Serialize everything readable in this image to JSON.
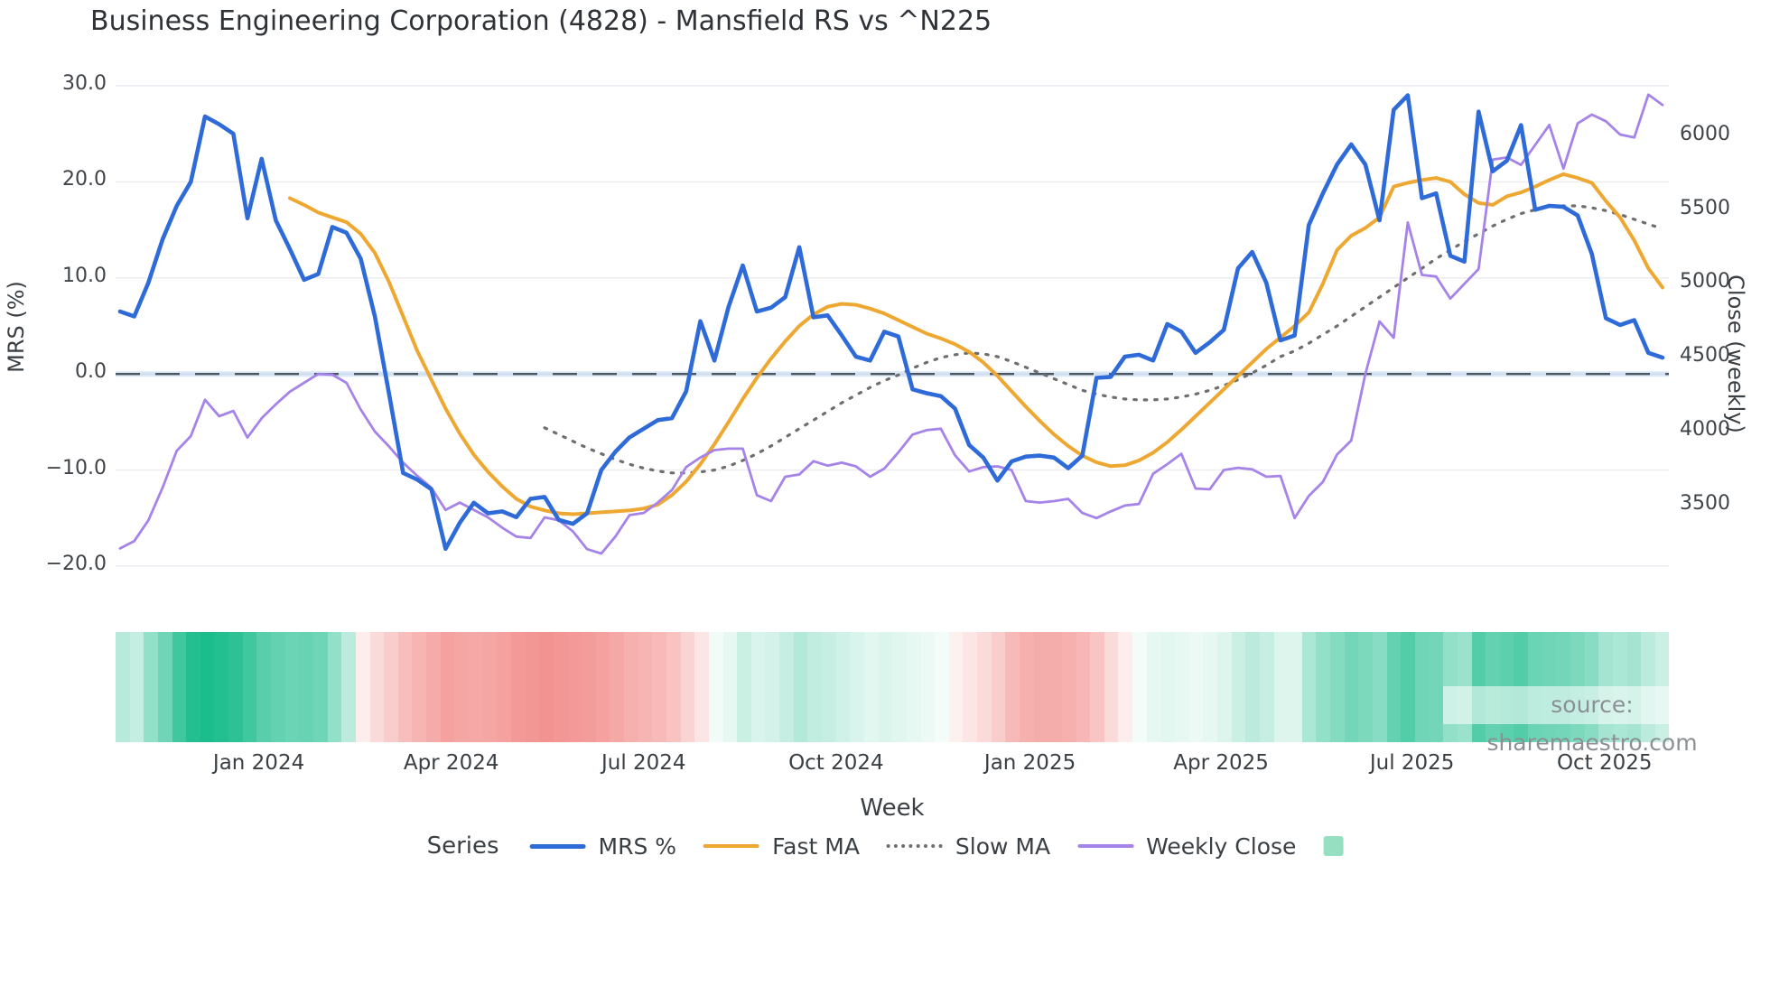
{
  "watermark": "source: sharemaestro.com",
  "legend": {
    "title": "Series",
    "heatmap_swatch_color": "#96dfc0"
  },
  "chart_data": {
    "type": "line",
    "title": "Business Engineering Corporation (4828) - Mansfield RS vs ^N225",
    "x_axis": {
      "label": "Week",
      "tick_labels": [
        "Jan 2024",
        "Apr 2024",
        "Jul 2024",
        "Oct 2024",
        "Jan 2025",
        "Apr 2025",
        "Jul 2025",
        "Oct 2025"
      ],
      "tick_weeks": [
        9.8,
        23.4,
        37.0,
        50.6,
        64.3,
        77.8,
        91.3,
        104.9
      ],
      "n_weeks": 110
    },
    "left_axis": {
      "label": "MRS (%)",
      "tick_labels": [
        "30.0",
        "20.0",
        "10.0",
        "0.0",
        "−10.0",
        "−20.0"
      ],
      "tick_values": [
        30,
        20,
        10,
        0,
        -10,
        -20
      ],
      "range": [
        -22,
        31.5
      ]
    },
    "right_axis": {
      "label": "Close (weekly)",
      "tick_labels": [
        "6000",
        "5500",
        "5000",
        "4500",
        "4000",
        "3500"
      ],
      "tick_values": [
        6000,
        5500,
        5000,
        4500,
        4000,
        3500
      ]
    },
    "zero_line_value": 0,
    "grid": true,
    "legend_position": "bottom",
    "series": [
      {
        "name": "MRS %",
        "axis": "left",
        "color": "#2e6bd9",
        "style": "solid",
        "line_width": 4.6,
        "start_week": 0,
        "values": [
          6.5,
          6.0,
          9.5,
          14.0,
          17.5,
          20.0,
          26.8,
          26.0,
          25.0,
          16.2,
          22.4,
          16.0,
          13.0,
          9.8,
          10.4,
          15.3,
          14.7,
          12.0,
          6.0,
          -2.0,
          -10.3,
          -11.0,
          -12.0,
          -18.2,
          -15.5,
          -13.4,
          -14.5,
          -14.3,
          -14.9,
          -13.0,
          -12.8,
          -15.2,
          -15.6,
          -14.5,
          -10.0,
          -8.1,
          -6.6,
          -5.7,
          -4.8,
          -4.6,
          -1.8,
          5.5,
          1.4,
          7.0,
          11.3,
          6.5,
          6.9,
          8.0,
          13.2,
          5.9,
          6.1,
          4.0,
          1.8,
          1.4,
          4.4,
          3.9,
          -1.6,
          -2.0,
          -2.3,
          -3.6,
          -7.4,
          -8.7,
          -11.1,
          -9.1,
          -8.6,
          -8.5,
          -8.7,
          -9.8,
          -8.5,
          -0.4,
          -0.3,
          1.8,
          2.0,
          1.4,
          5.2,
          4.4,
          2.2,
          3.3,
          4.6,
          11.0,
          12.7,
          9.5,
          3.5,
          4.0,
          15.5,
          18.8,
          21.8,
          23.9,
          21.8,
          16.0,
          27.5,
          29.0,
          18.3,
          18.8,
          12.3,
          11.7,
          27.3,
          21.1,
          22.2,
          25.9,
          17.1,
          17.5,
          17.4,
          16.5,
          12.5,
          5.8,
          5.1,
          5.6,
          2.2,
          1.7
        ]
      },
      {
        "name": "Fast MA",
        "axis": "left",
        "color": "#eea832",
        "style": "solid",
        "line_width": 4.0,
        "start_week": 12,
        "values": [
          18.3,
          17.6,
          16.8,
          16.3,
          15.8,
          14.6,
          12.6,
          9.6,
          6.0,
          2.4,
          -0.6,
          -3.6,
          -6.2,
          -8.4,
          -10.2,
          -11.7,
          -13.0,
          -13.8,
          -14.2,
          -14.5,
          -14.6,
          -14.5,
          -14.4,
          -14.3,
          -14.2,
          -14.0,
          -13.6,
          -12.6,
          -11.2,
          -9.4,
          -7.3,
          -5.0,
          -2.6,
          -0.4,
          1.6,
          3.4,
          5.0,
          6.2,
          7.0,
          7.3,
          7.2,
          6.8,
          6.3,
          5.6,
          4.9,
          4.2,
          3.7,
          3.1,
          2.3,
          1.2,
          -0.2,
          -1.8,
          -3.4,
          -4.9,
          -6.3,
          -7.5,
          -8.5,
          -9.2,
          -9.6,
          -9.5,
          -9.0,
          -8.2,
          -7.1,
          -5.8,
          -4.4,
          -3.0,
          -1.6,
          -0.2,
          1.2,
          2.6,
          3.8,
          5.0,
          6.4,
          9.4,
          12.9,
          14.4,
          15.2,
          16.3,
          19.5,
          19.9,
          20.2,
          20.4,
          20.0,
          18.7,
          17.8,
          17.6,
          18.5,
          18.9,
          19.5,
          20.2,
          20.8,
          20.4,
          19.9,
          18.0,
          16.3,
          13.9,
          11.0,
          9.0
        ]
      },
      {
        "name": "Slow MA",
        "axis": "left",
        "color": "#6e6e6e",
        "style": "dotted",
        "line_width": 3.2,
        "start_week": 30,
        "values": [
          -5.6,
          -6.3,
          -7.0,
          -7.7,
          -8.3,
          -8.9,
          -9.4,
          -9.8,
          -10.1,
          -10.3,
          -10.3,
          -10.2,
          -10.0,
          -9.6,
          -9.0,
          -8.3,
          -7.5,
          -6.6,
          -5.7,
          -4.8,
          -3.9,
          -3.0,
          -2.2,
          -1.4,
          -0.7,
          -0.1,
          0.6,
          1.2,
          1.7,
          2.0,
          2.2,
          2.1,
          1.8,
          1.3,
          0.7,
          0.1,
          -0.5,
          -1.1,
          -1.7,
          -2.1,
          -2.4,
          -2.6,
          -2.7,
          -2.7,
          -2.6,
          -2.4,
          -2.1,
          -1.7,
          -1.2,
          -0.6,
          0.1,
          0.9,
          1.8,
          2.4,
          3.2,
          4.1,
          5.0,
          6.0,
          7.0,
          8.0,
          9.0,
          10.0,
          11.0,
          12.0,
          12.9,
          13.8,
          14.6,
          15.4,
          16.1,
          16.7,
          17.1,
          17.4,
          17.5,
          17.5,
          17.3,
          17.0,
          16.6,
          16.1,
          15.6,
          15.1
        ]
      },
      {
        "name": "Weekly Close",
        "axis": "right",
        "color": "#a583e8",
        "style": "solid",
        "line_width": 2.8,
        "start_week": 0,
        "values": [
          3210,
          3260,
          3400,
          3620,
          3870,
          3970,
          4215,
          4105,
          4140,
          3960,
          4090,
          4185,
          4270,
          4330,
          4390,
          4385,
          4330,
          4150,
          4000,
          3900,
          3790,
          3700,
          3620,
          3470,
          3520,
          3470,
          3420,
          3350,
          3290,
          3280,
          3420,
          3400,
          3325,
          3205,
          3175,
          3290,
          3435,
          3450,
          3520,
          3605,
          3760,
          3825,
          3875,
          3885,
          3885,
          3570,
          3530,
          3695,
          3710,
          3800,
          3770,
          3790,
          3765,
          3695,
          3750,
          3860,
          3980,
          4010,
          4020,
          3840,
          3730,
          3760,
          3765,
          3740,
          3530,
          3520,
          3530,
          3545,
          3450,
          3415,
          3460,
          3500,
          3510,
          3715,
          3780,
          3850,
          3615,
          3610,
          3740,
          3755,
          3745,
          3695,
          3700,
          3415,
          3565,
          3660,
          3845,
          3940,
          4390,
          4745,
          4635,
          5415,
          5060,
          5050,
          4900,
          5000,
          5100,
          5840,
          5855,
          5805,
          5940,
          6075,
          5780,
          6085,
          6145,
          6100,
          6010,
          5990,
          6280,
          6210
        ]
      }
    ],
    "heatmap_strip": {
      "positive_color": "#10b986",
      "negative_color": "#ee6f6c",
      "values": [
        0.3,
        0.25,
        0.45,
        0.6,
        0.8,
        0.92,
        0.95,
        0.92,
        0.88,
        0.8,
        0.7,
        0.65,
        0.62,
        0.63,
        0.6,
        0.45,
        0.28,
        -0.12,
        -0.25,
        -0.35,
        -0.45,
        -0.52,
        -0.58,
        -0.65,
        -0.62,
        -0.6,
        -0.62,
        -0.65,
        -0.7,
        -0.72,
        -0.75,
        -0.72,
        -0.7,
        -0.68,
        -0.65,
        -0.6,
        -0.55,
        -0.52,
        -0.48,
        -0.42,
        -0.3,
        -0.18,
        0.06,
        0.1,
        0.22,
        0.16,
        0.18,
        0.24,
        0.32,
        0.26,
        0.24,
        0.2,
        0.16,
        0.12,
        0.15,
        0.13,
        0.1,
        0.08,
        0.05,
        -0.1,
        -0.18,
        -0.25,
        -0.35,
        -0.48,
        -0.55,
        -0.57,
        -0.57,
        -0.55,
        -0.5,
        -0.4,
        -0.25,
        -0.12,
        0.05,
        0.1,
        0.12,
        0.1,
        0.08,
        0.1,
        0.14,
        0.22,
        0.28,
        0.24,
        0.14,
        0.14,
        0.35,
        0.45,
        0.52,
        0.58,
        0.55,
        0.5,
        0.65,
        0.72,
        0.6,
        0.58,
        0.45,
        0.42,
        0.72,
        0.65,
        0.68,
        0.72,
        0.62,
        0.6,
        0.58,
        0.55,
        0.5,
        0.38,
        0.35,
        0.38,
        0.28,
        0.22
      ]
    }
  }
}
